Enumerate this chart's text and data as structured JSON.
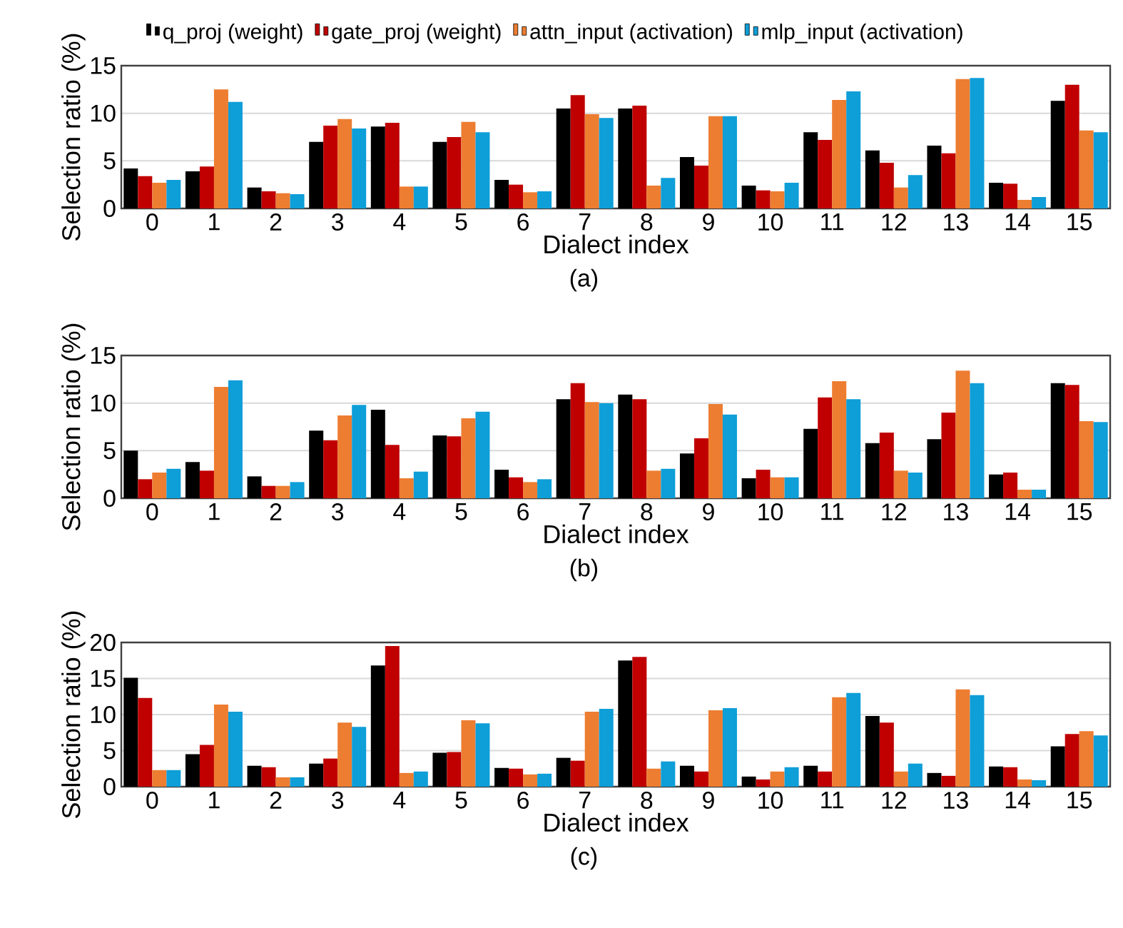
{
  "chart_data": [
    {
      "type": "bar",
      "legend": "top",
      "grid": "y",
      "xlabel": "Dialect index",
      "ylabel": "Selection ratio (%)",
      "annotations": [
        "(a)"
      ],
      "categories": [
        "0",
        "1",
        "2",
        "3",
        "4",
        "5",
        "6",
        "7",
        "8",
        "9",
        "10",
        "11",
        "12",
        "13",
        "14",
        "15"
      ],
      "ylim": [
        0,
        15
      ],
      "yticks": [
        0,
        5,
        10,
        15
      ],
      "series": [
        {
          "name": "q_proj (weight)",
          "color": "#000000",
          "values": [
            4.2,
            3.9,
            2.2,
            7.0,
            8.6,
            7.0,
            3.0,
            10.5,
            10.5,
            5.4,
            2.4,
            8.0,
            6.1,
            6.6,
            2.7,
            11.3
          ]
        },
        {
          "name": "gate_proj (weight)",
          "color": "#c00000",
          "values": [
            3.4,
            4.4,
            1.8,
            8.7,
            9.0,
            7.5,
            2.5,
            11.9,
            10.8,
            4.5,
            1.9,
            7.2,
            4.8,
            5.8,
            2.6,
            13.0
          ]
        },
        {
          "name": "attn_input (activation)",
          "color": "#ed7d31",
          "values": [
            2.7,
            12.5,
            1.6,
            9.4,
            2.3,
            9.1,
            1.7,
            9.9,
            2.4,
            9.7,
            1.8,
            11.4,
            2.2,
            13.6,
            0.9,
            8.2
          ]
        },
        {
          "name": "mlp_input (activation)",
          "color": "#0e9ed8",
          "values": [
            3.0,
            11.2,
            1.5,
            8.4,
            2.3,
            8.0,
            1.8,
            9.5,
            3.2,
            9.7,
            2.7,
            12.3,
            3.5,
            13.7,
            1.2,
            8.0
          ]
        }
      ]
    },
    {
      "type": "bar",
      "grid": "y",
      "xlabel": "Dialect index",
      "ylabel": "Selection ratio (%)",
      "annotations": [
        "(b)"
      ],
      "categories": [
        "0",
        "1",
        "2",
        "3",
        "4",
        "5",
        "6",
        "7",
        "8",
        "9",
        "10",
        "11",
        "12",
        "13",
        "14",
        "15"
      ],
      "ylim": [
        0,
        15
      ],
      "yticks": [
        0,
        5,
        10,
        15
      ],
      "series": [
        {
          "color": "#000000",
          "values": [
            5.0,
            3.8,
            2.3,
            7.1,
            9.3,
            6.6,
            3.0,
            10.4,
            10.9,
            4.7,
            2.1,
            7.3,
            5.8,
            6.2,
            2.5,
            12.1
          ]
        },
        {
          "color": "#c00000",
          "values": [
            2.0,
            2.9,
            1.3,
            6.1,
            5.6,
            6.5,
            2.2,
            12.1,
            10.4,
            6.3,
            3.0,
            10.6,
            6.9,
            9.0,
            2.7,
            11.9
          ]
        },
        {
          "color": "#ed7d31",
          "values": [
            2.7,
            11.7,
            1.3,
            8.7,
            2.1,
            8.4,
            1.7,
            10.1,
            2.9,
            9.9,
            2.2,
            12.3,
            2.9,
            13.4,
            0.9,
            8.1
          ]
        },
        {
          "color": "#0e9ed8",
          "values": [
            3.1,
            12.4,
            1.7,
            9.8,
            2.8,
            9.1,
            2.0,
            10.0,
            3.1,
            8.8,
            2.2,
            10.4,
            2.7,
            12.1,
            0.9,
            8.0
          ]
        }
      ]
    },
    {
      "type": "bar",
      "grid": "y",
      "xlabel": "Dialect index",
      "ylabel": "Selection ratio (%)",
      "annotations": [
        "(c)"
      ],
      "categories": [
        "0",
        "1",
        "2",
        "3",
        "4",
        "5",
        "6",
        "7",
        "8",
        "9",
        "10",
        "11",
        "12",
        "13",
        "14",
        "15"
      ],
      "ylim": [
        0,
        20
      ],
      "yticks": [
        0,
        5,
        10,
        15,
        20
      ],
      "series": [
        {
          "color": "#000000",
          "values": [
            15.1,
            4.5,
            2.9,
            3.2,
            16.8,
            4.7,
            2.6,
            4.0,
            17.5,
            2.9,
            1.4,
            2.9,
            9.8,
            1.9,
            2.8,
            5.6
          ]
        },
        {
          "color": "#c00000",
          "values": [
            12.3,
            5.8,
            2.7,
            3.9,
            19.5,
            4.8,
            2.5,
            3.6,
            18.0,
            2.1,
            1.0,
            2.1,
            8.9,
            1.5,
            2.7,
            7.3
          ]
        },
        {
          "color": "#ed7d31",
          "values": [
            2.3,
            11.4,
            1.3,
            8.9,
            1.9,
            9.2,
            1.7,
            10.4,
            2.5,
            10.6,
            2.1,
            12.4,
            2.1,
            13.5,
            1.0,
            7.7
          ]
        },
        {
          "color": "#0e9ed8",
          "values": [
            2.3,
            10.4,
            1.3,
            8.3,
            2.1,
            8.8,
            1.8,
            10.8,
            3.5,
            10.9,
            2.7,
            13.0,
            3.2,
            12.7,
            0.9,
            7.1
          ]
        }
      ]
    }
  ]
}
